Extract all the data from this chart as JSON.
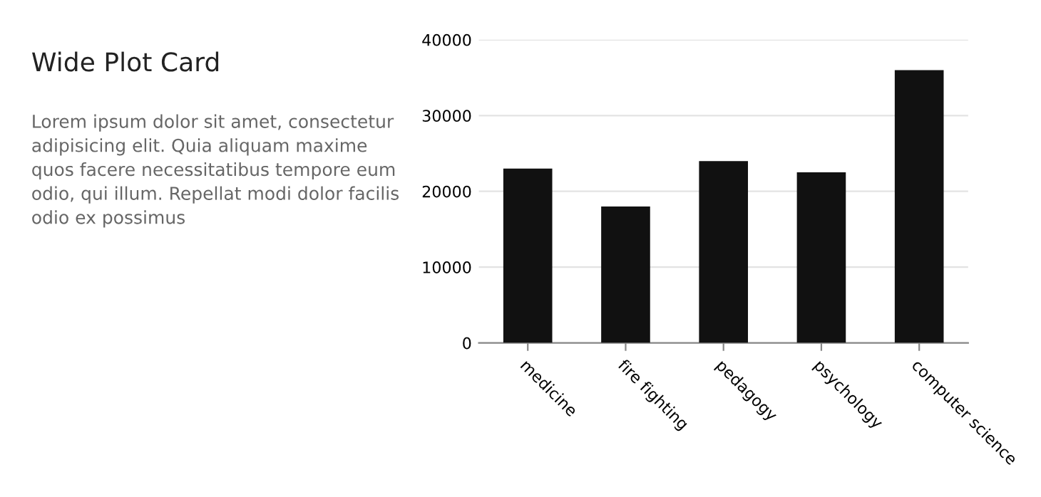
{
  "chart_data": [
    {
      "type": "other",
      "title": "Wide Plot Card",
      "annotations": [
        "Lorem ipsum dolor sit amet, consectetur adipisicing elit. Quia aliquam maxime quos facere necessitatibus tempore eum odio, qui illum. Repellat modi dolor facilis odio ex possimus"
      ]
    },
    {
      "type": "bar",
      "categories": [
        "medicine",
        "fire fighting",
        "pedagogy",
        "psychology",
        "computer science"
      ],
      "values": [
        23000,
        18000,
        24000,
        22500,
        36000
      ],
      "color": "#111111",
      "ylim": [
        0,
        40000
      ],
      "yticks": [
        0,
        10000,
        20000,
        30000,
        40000
      ],
      "grid": "y"
    }
  ]
}
